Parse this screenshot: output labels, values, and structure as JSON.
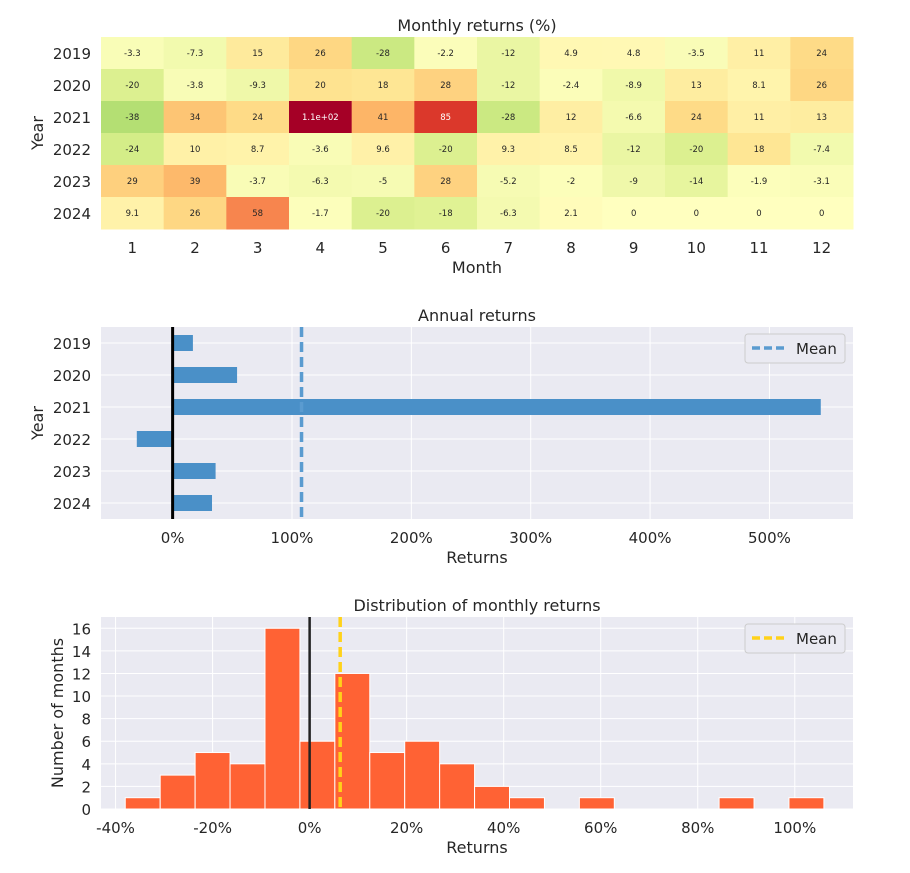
{
  "chart_data": [
    {
      "type": "heatmap",
      "title": "Monthly returns (%)",
      "xlabel": "Month",
      "ylabel": "Year",
      "x": [
        "1",
        "2",
        "3",
        "4",
        "5",
        "6",
        "7",
        "8",
        "9",
        "10",
        "11",
        "12"
      ],
      "y": [
        "2019",
        "2020",
        "2021",
        "2022",
        "2023",
        "2024"
      ],
      "values": [
        [
          -3.3,
          -7.3,
          15,
          26,
          -28,
          -2.2,
          -12,
          4.9,
          4.8,
          -3.5,
          11,
          24
        ],
        [
          -20,
          -3.8,
          -9.3,
          20,
          18,
          28,
          -12,
          -2.4,
          -8.9,
          13,
          8.1,
          26
        ],
        [
          -38,
          34,
          24,
          110,
          41,
          85,
          -28,
          12,
          -6.6,
          24,
          11,
          13
        ],
        [
          -24,
          10,
          8.7,
          -3.6,
          9.6,
          -20,
          9.3,
          8.5,
          -12,
          -20,
          18,
          -7.4
        ],
        [
          29,
          39,
          -3.7,
          -6.3,
          -5,
          28,
          -5.2,
          -2,
          -9,
          -14,
          -1.9,
          -3.1
        ],
        [
          9.1,
          26,
          58,
          -1.7,
          -20,
          -18,
          -6.3,
          2.1,
          0,
          0,
          0,
          0
        ]
      ],
      "labels": [
        [
          "-3.3",
          "-7.3",
          "15",
          "26",
          "-28",
          "-2.2",
          "-12",
          "4.9",
          "4.8",
          "-3.5",
          "11",
          "24"
        ],
        [
          "-20",
          "-3.8",
          "-9.3",
          "20",
          "18",
          "28",
          "-12",
          "-2.4",
          "-8.9",
          "13",
          "8.1",
          "26"
        ],
        [
          "-38",
          "34",
          "24",
          "1.1e+02",
          "41",
          "85",
          "-28",
          "12",
          "-6.6",
          "24",
          "11",
          "13"
        ],
        [
          "-24",
          "10",
          "8.7",
          "-3.6",
          "9.6",
          "-20",
          "9.3",
          "8.5",
          "-12",
          "-20",
          "18",
          "-7.4"
        ],
        [
          "29",
          "39",
          "-3.7",
          "-6.3",
          "-5",
          "28",
          "-5.2",
          "-2",
          "-9",
          "-14",
          "-1.9",
          "-3.1"
        ],
        [
          "9.1",
          "26",
          "58",
          "-1.7",
          "-20",
          "-18",
          "-6.3",
          "2.1",
          "0",
          "0",
          "0",
          "0"
        ]
      ],
      "colormap": "RdYlGn_r",
      "color_range": [
        -110,
        110
      ]
    },
    {
      "type": "bar",
      "orientation": "horizontal",
      "title": "Annual returns",
      "xlabel": "Returns",
      "ylabel": "Year",
      "categories": [
        "2019",
        "2020",
        "2021",
        "2022",
        "2023",
        "2024"
      ],
      "values": [
        17,
        54,
        543,
        -30,
        36,
        33
      ],
      "mean": 108,
      "xlim": [
        -60,
        570
      ],
      "xticks": [
        0,
        100,
        200,
        300,
        400,
        500
      ],
      "xtick_labels": [
        "0%",
        "100%",
        "200%",
        "300%",
        "400%",
        "500%"
      ],
      "legend": {
        "label": "Mean",
        "position": "top-right"
      },
      "bar_color": "#4a90c8",
      "mean_color": "#5a9bd0"
    },
    {
      "type": "bar",
      "subtype": "histogram",
      "title": "Distribution of monthly returns",
      "xlabel": "Returns",
      "ylabel": "Number of months",
      "bins": [
        {
          "start": -38,
          "end": -30.8,
          "count": 1
        },
        {
          "start": -30.8,
          "end": -23.6,
          "count": 3
        },
        {
          "start": -23.6,
          "end": -16.4,
          "count": 5
        },
        {
          "start": -16.4,
          "end": -9.2,
          "count": 4
        },
        {
          "start": -9.2,
          "end": -2.0,
          "count": 16
        },
        {
          "start": -2.0,
          "end": 5.2,
          "count": 6
        },
        {
          "start": 5.2,
          "end": 12.4,
          "count": 12
        },
        {
          "start": 12.4,
          "end": 19.6,
          "count": 5
        },
        {
          "start": 19.6,
          "end": 26.8,
          "count": 6
        },
        {
          "start": 26.8,
          "end": 34.0,
          "count": 4
        },
        {
          "start": 34.0,
          "end": 41.2,
          "count": 2
        },
        {
          "start": 41.2,
          "end": 48.4,
          "count": 1
        },
        {
          "start": 55.6,
          "end": 62.8,
          "count": 1
        },
        {
          "start": 84.4,
          "end": 91.6,
          "count": 1
        },
        {
          "start": 98.8,
          "end": 106.0,
          "count": 1
        }
      ],
      "mean": 6.3,
      "xlim": [
        -43,
        112
      ],
      "ylim": [
        0,
        17
      ],
      "xticks": [
        -40,
        -20,
        0,
        20,
        40,
        60,
        80,
        100
      ],
      "xtick_labels": [
        "-40%",
        "-20%",
        "0%",
        "20%",
        "40%",
        "60%",
        "80%",
        "100%"
      ],
      "yticks": [
        0,
        2,
        4,
        6,
        8,
        10,
        12,
        14,
        16
      ],
      "legend": {
        "label": "Mean",
        "position": "top-right"
      },
      "bar_color": "#ff6234",
      "mean_color": "#ffd21a"
    }
  ]
}
